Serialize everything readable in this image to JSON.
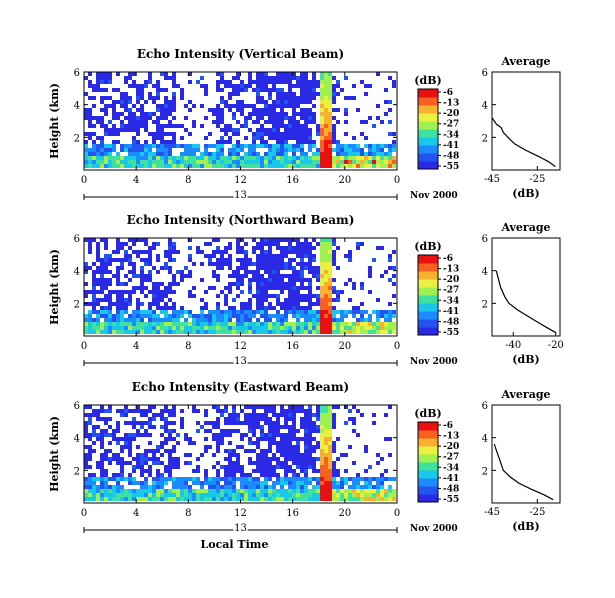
{
  "colors": {
    "scale": [
      "#2a2ae6",
      "#2255f0",
      "#1a8cff",
      "#18c8e8",
      "#40e0a0",
      "#a0f050",
      "#e8f040",
      "#f8b030",
      "#f86020",
      "#e81010"
    ]
  },
  "chart_data": [
    {
      "type": "heatmap",
      "title": "Echo Intensity (Vertical Beam)",
      "ylabel": "Height (km)",
      "xlim": [
        0,
        24
      ],
      "xticks": [
        "0",
        "4",
        "8",
        "12",
        "16",
        "20",
        "0"
      ],
      "ylim": [
        0,
        6
      ],
      "yticks": [
        "6",
        "4",
        "2"
      ],
      "date_day": "13",
      "date_label": "Nov 2000",
      "colorbar": {
        "label": "(dB)",
        "ticks": [
          "-6",
          "-13",
          "-20",
          "-27",
          "-34",
          "-41",
          "-48",
          "-55"
        ]
      },
      "average": {
        "title": "Average",
        "xlabel": "(dB)",
        "xticks": [
          "-45",
          "-25"
        ],
        "xlim": [
          -45,
          -15
        ],
        "yticks": [
          "6",
          "4",
          "2"
        ],
        "profile": [
          [
            0.2,
            -17
          ],
          [
            0.5,
            -20
          ],
          [
            0.8,
            -24
          ],
          [
            1.2,
            -30
          ],
          [
            1.6,
            -35
          ],
          [
            2.0,
            -38
          ],
          [
            2.3,
            -40
          ],
          [
            2.6,
            -41
          ],
          [
            2.8,
            -43
          ],
          [
            3.0,
            -44
          ],
          [
            3.2,
            -45
          ]
        ]
      }
    },
    {
      "type": "heatmap",
      "title": "Echo Intensity (Northward Beam)",
      "ylabel": "Height (km)",
      "xlim": [
        0,
        24
      ],
      "xticks": [
        "0",
        "4",
        "8",
        "12",
        "16",
        "20",
        "0"
      ],
      "ylim": [
        0,
        6
      ],
      "yticks": [
        "6",
        "4",
        "2"
      ],
      "date_day": "13",
      "date_label": "Nov 2000",
      "colorbar": {
        "label": "(dB)",
        "ticks": [
          "-6",
          "-13",
          "-20",
          "-27",
          "-34",
          "-41",
          "-48",
          "-55"
        ]
      },
      "average": {
        "title": "Average",
        "xlabel": "(dB)",
        "xticks": [
          "-40",
          "-20"
        ],
        "xlim": [
          -50,
          -18
        ],
        "yticks": [
          "6",
          "4",
          "2"
        ],
        "profile": [
          [
            0.2,
            -20
          ],
          [
            0.5,
            -24
          ],
          [
            0.8,
            -28
          ],
          [
            1.2,
            -33
          ],
          [
            1.6,
            -38
          ],
          [
            2.0,
            -42
          ],
          [
            2.4,
            -44
          ],
          [
            3.0,
            -46
          ],
          [
            3.5,
            -47
          ],
          [
            4.0,
            -48
          ]
        ]
      }
    },
    {
      "type": "heatmap",
      "title": "Echo Intensity (Eastward Beam)",
      "ylabel": "Height (km)",
      "xlim": [
        0,
        24
      ],
      "xticks": [
        "0",
        "4",
        "8",
        "12",
        "16",
        "20",
        "0"
      ],
      "ylim": [
        0,
        6
      ],
      "yticks": [
        "6",
        "4",
        "2"
      ],
      "date_day": "13",
      "date_label": "Nov 2000",
      "xlabel": "Local Time",
      "colorbar": {
        "label": "(dB)",
        "ticks": [
          "-6",
          "-13",
          "-20",
          "-27",
          "-34",
          "-41",
          "-48",
          "-55"
        ]
      },
      "average": {
        "title": "Average",
        "xlabel": "(dB)",
        "xticks": [
          "-45",
          "-25"
        ],
        "xlim": [
          -45,
          -15
        ],
        "yticks": [
          "6",
          "4",
          "2"
        ],
        "profile": [
          [
            0.2,
            -18
          ],
          [
            0.5,
            -22
          ],
          [
            0.8,
            -27
          ],
          [
            1.2,
            -33
          ],
          [
            1.6,
            -37
          ],
          [
            2.0,
            -40
          ],
          [
            2.4,
            -41
          ],
          [
            2.8,
            -42
          ],
          [
            3.2,
            -43
          ],
          [
            3.6,
            -44
          ]
        ]
      }
    }
  ]
}
